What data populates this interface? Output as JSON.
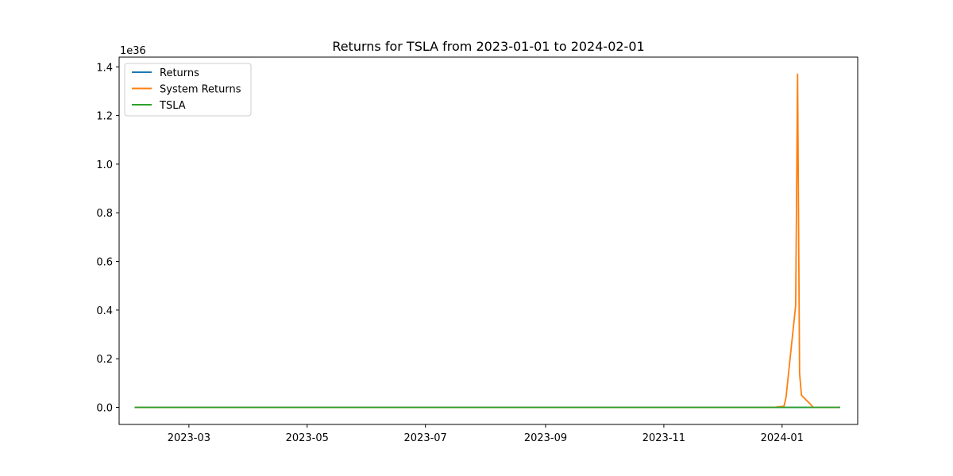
{
  "chart_data": {
    "type": "line",
    "title": "Returns for TSLA from 2023-01-01 to 2024-02-01",
    "xlabel": "",
    "ylabel": "",
    "y_offset_label": "1e36",
    "xlim": [
      "2023-01-24",
      "2024-02-09"
    ],
    "ylim": [
      -0.07,
      1.44
    ],
    "x_ticks": [
      "2023-03-01",
      "2023-05-01",
      "2023-07-01",
      "2023-09-01",
      "2023-11-01",
      "2024-01-01"
    ],
    "x_tick_labels": [
      "2023-03",
      "2023-05",
      "2023-07",
      "2023-09",
      "2023-11",
      "2024-01"
    ],
    "y_ticks": [
      0.0,
      0.2,
      0.4,
      0.6,
      0.8,
      1.0,
      1.2,
      1.4
    ],
    "y_tick_labels": [
      "0.0",
      "0.2",
      "0.4",
      "0.6",
      "0.8",
      "1.0",
      "1.2",
      "1.4"
    ],
    "grid": false,
    "legend_position": "top-left",
    "series": [
      {
        "name": "Returns",
        "color": "#1f77b4",
        "points": [
          [
            "2023-02-01",
            0.0
          ],
          [
            "2024-01-31",
            0.0
          ]
        ]
      },
      {
        "name": "System Returns",
        "color": "#ff7f0e",
        "points": [
          [
            "2023-02-01",
            0.0
          ],
          [
            "2023-12-28",
            0.0
          ],
          [
            "2024-01-02",
            0.005
          ],
          [
            "2024-01-03",
            0.04
          ],
          [
            "2024-01-08",
            0.42
          ],
          [
            "2024-01-09",
            1.37
          ],
          [
            "2024-01-10",
            0.14
          ],
          [
            "2024-01-11",
            0.05
          ],
          [
            "2024-01-16",
            0.01
          ],
          [
            "2024-01-17",
            0.0
          ],
          [
            "2024-01-31",
            0.0
          ]
        ]
      },
      {
        "name": "TSLA",
        "color": "#2ca02c",
        "points": [
          [
            "2023-02-01",
            0.0
          ],
          [
            "2024-01-31",
            0.0
          ]
        ]
      }
    ]
  }
}
